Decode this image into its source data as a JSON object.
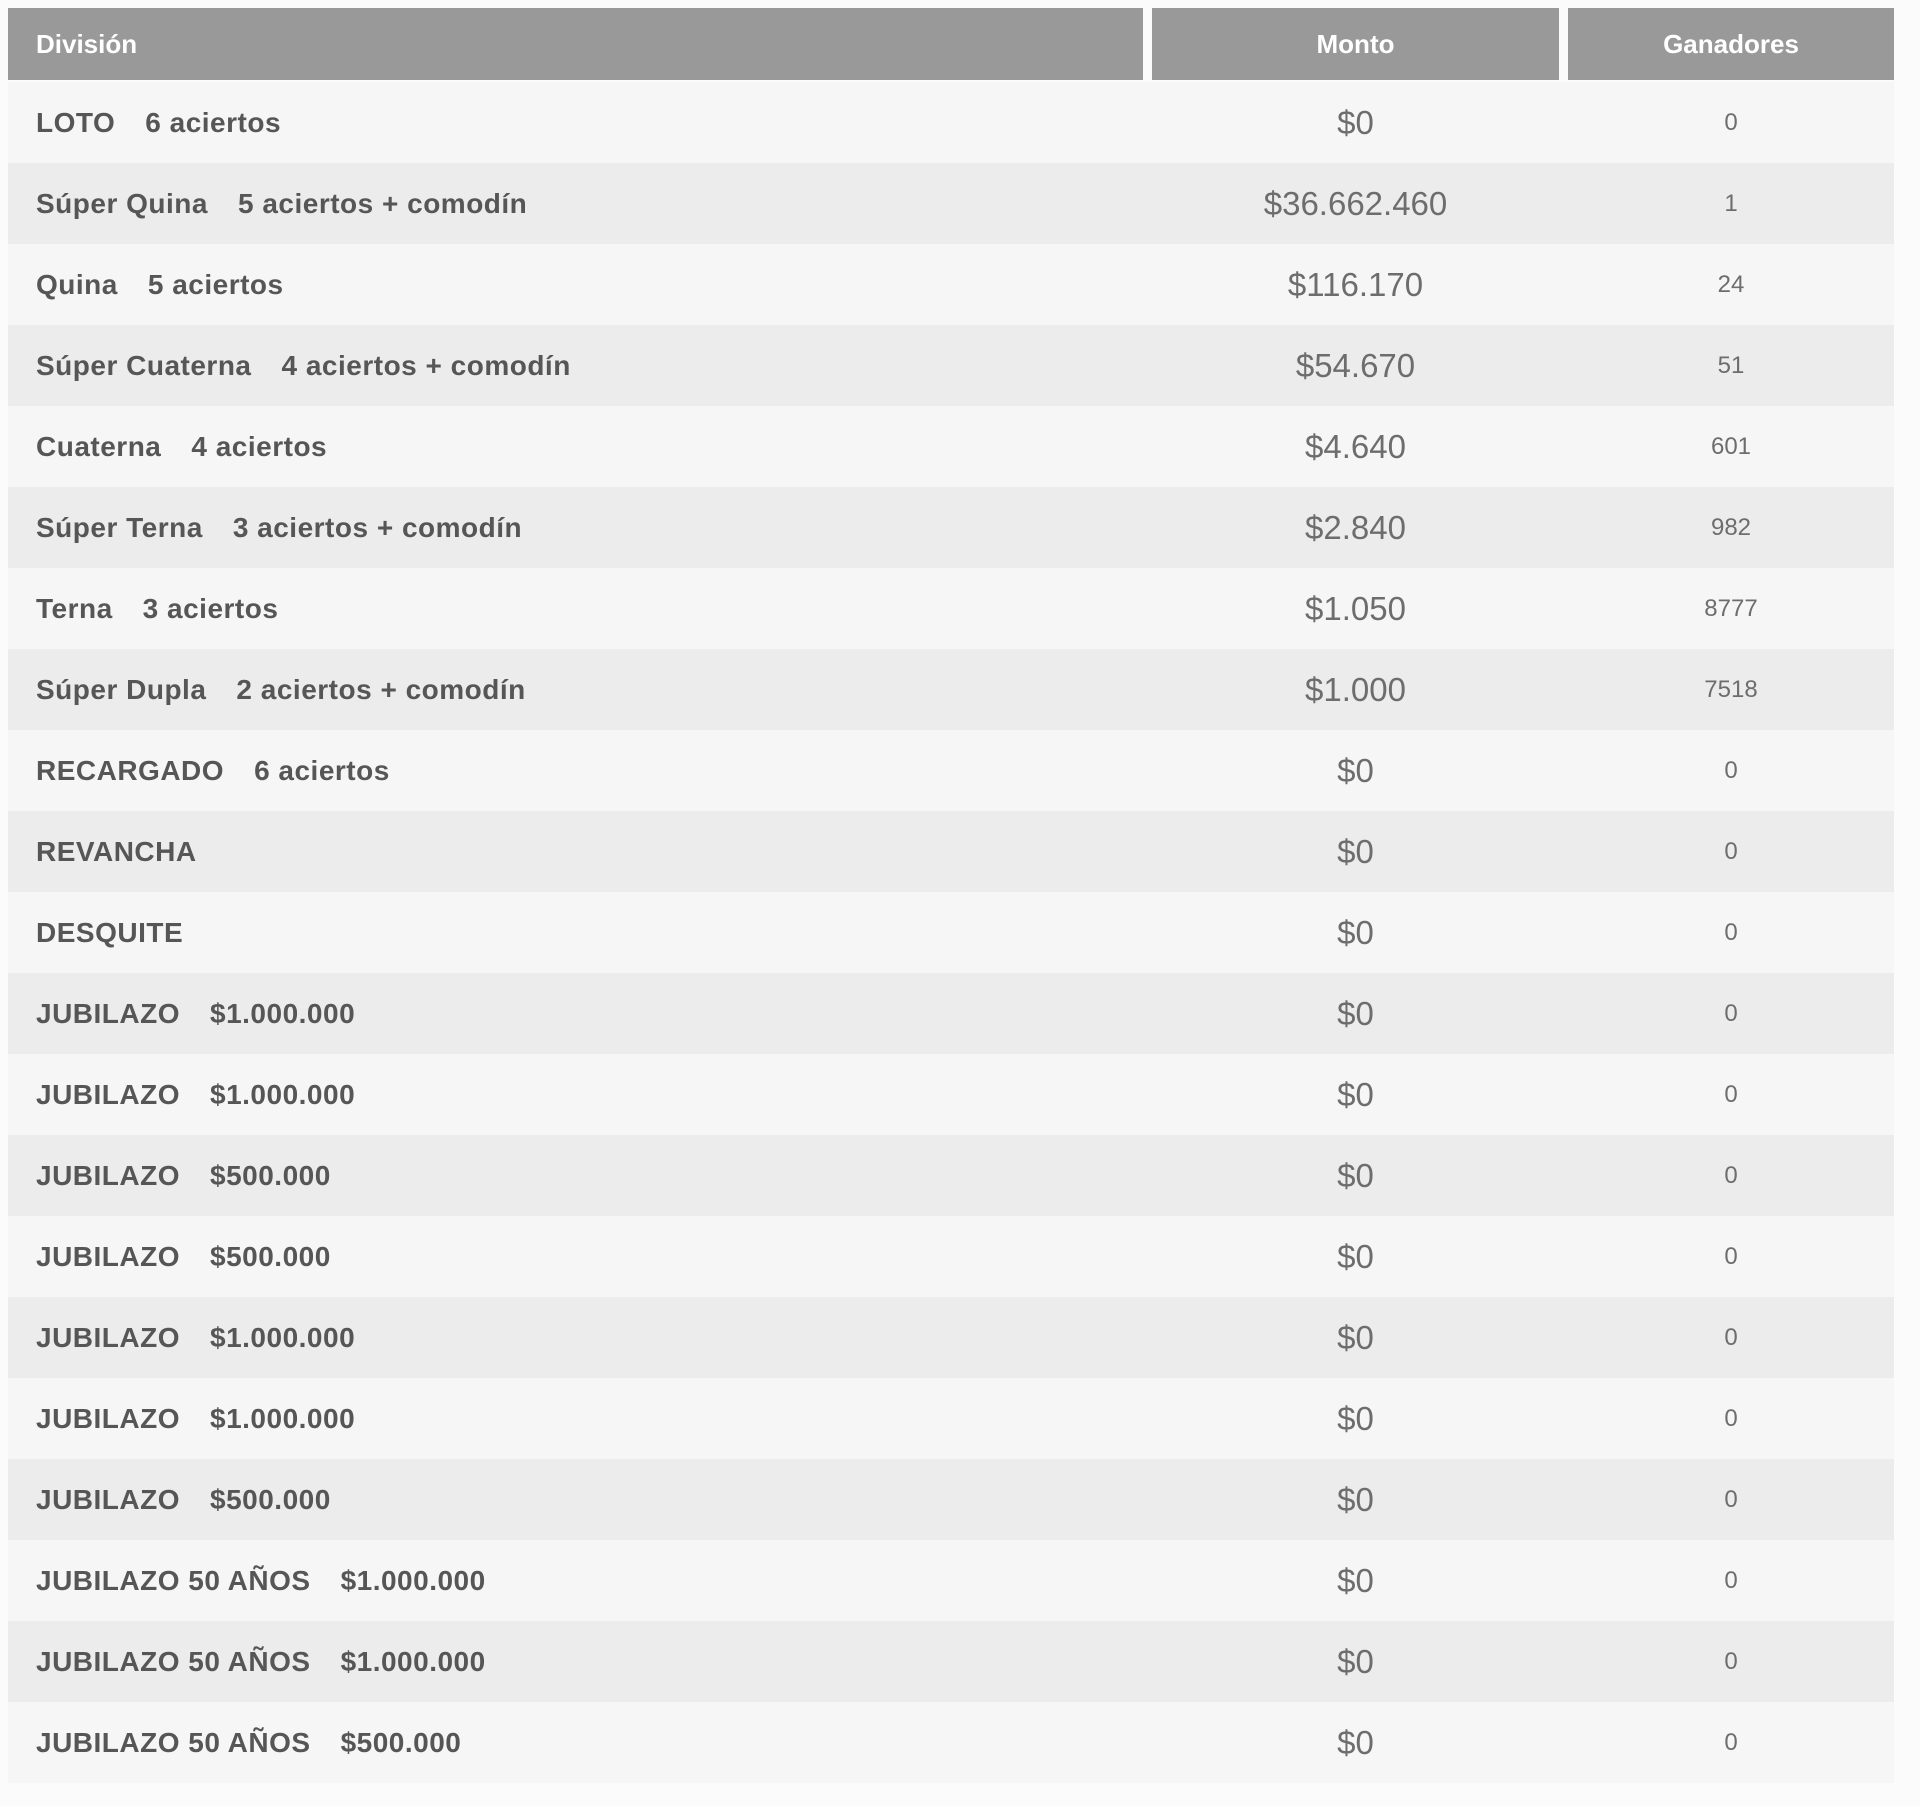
{
  "colors": {
    "header_bg": "#999999",
    "header_text": "#ffffff",
    "row_light": "#f6f6f6",
    "row_dark": "#ececec",
    "label_text": "#565656",
    "value_text": "#6d6d6d"
  },
  "table": {
    "columns": {
      "division": "División",
      "monto": "Monto",
      "ganadores": "Ganadores"
    },
    "rows": [
      {
        "division": "LOTO",
        "detail": "6 aciertos",
        "monto": "$0",
        "ganadores": "0"
      },
      {
        "division": "Súper Quina",
        "detail": "5 aciertos + comodín",
        "monto": "$36.662.460",
        "ganadores": "1"
      },
      {
        "division": "Quina",
        "detail": "5 aciertos",
        "monto": "$116.170",
        "ganadores": "24"
      },
      {
        "division": "Súper Cuaterna",
        "detail": "4 aciertos + comodín",
        "monto": "$54.670",
        "ganadores": "51"
      },
      {
        "division": "Cuaterna",
        "detail": "4 aciertos",
        "monto": "$4.640",
        "ganadores": "601"
      },
      {
        "division": "Súper Terna",
        "detail": "3 aciertos + comodín",
        "monto": "$2.840",
        "ganadores": "982"
      },
      {
        "division": "Terna",
        "detail": "3 aciertos",
        "monto": "$1.050",
        "ganadores": "8777"
      },
      {
        "division": "Súper Dupla",
        "detail": "2 aciertos + comodín",
        "monto": "$1.000",
        "ganadores": "7518"
      },
      {
        "division": "RECARGADO",
        "detail": "6 aciertos",
        "monto": "$0",
        "ganadores": "0"
      },
      {
        "division": "REVANCHA",
        "detail": "",
        "monto": "$0",
        "ganadores": "0"
      },
      {
        "division": "DESQUITE",
        "detail": "",
        "monto": "$0",
        "ganadores": "0"
      },
      {
        "division": "JUBILAZO",
        "detail": "$1.000.000",
        "monto": "$0",
        "ganadores": "0"
      },
      {
        "division": "JUBILAZO",
        "detail": "$1.000.000",
        "monto": "$0",
        "ganadores": "0"
      },
      {
        "division": "JUBILAZO",
        "detail": "$500.000",
        "monto": "$0",
        "ganadores": "0"
      },
      {
        "division": "JUBILAZO",
        "detail": "$500.000",
        "monto": "$0",
        "ganadores": "0"
      },
      {
        "division": "JUBILAZO",
        "detail": "$1.000.000",
        "monto": "$0",
        "ganadores": "0"
      },
      {
        "division": "JUBILAZO",
        "detail": "$1.000.000",
        "monto": "$0",
        "ganadores": "0"
      },
      {
        "division": "JUBILAZO",
        "detail": "$500.000",
        "monto": "$0",
        "ganadores": "0"
      },
      {
        "division": "JUBILAZO 50 AÑOS",
        "detail": "$1.000.000",
        "monto": "$0",
        "ganadores": "0"
      },
      {
        "division": "JUBILAZO 50 AÑOS",
        "detail": "$1.000.000",
        "monto": "$0",
        "ganadores": "0"
      },
      {
        "division": "JUBILAZO 50 AÑOS",
        "detail": "$500.000",
        "monto": "$0",
        "ganadores": "0"
      }
    ]
  }
}
